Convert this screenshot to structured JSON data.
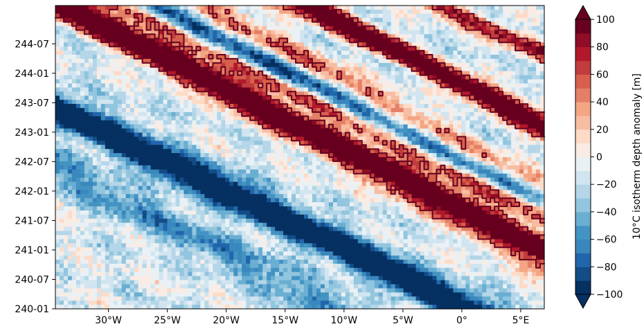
{
  "chart_data": {
    "type": "heatmap",
    "title": "",
    "xlabel": "",
    "ylabel": "",
    "x_ticks": [
      {
        "value": -30,
        "label": "30°W"
      },
      {
        "value": -25,
        "label": "25°W"
      },
      {
        "value": -20,
        "label": "20°W"
      },
      {
        "value": -15,
        "label": "15°W"
      },
      {
        "value": -10,
        "label": "10°W"
      },
      {
        "value": -5,
        "label": "5°W"
      },
      {
        "value": 0,
        "label": "0°"
      },
      {
        "value": 5,
        "label": "5°E"
      }
    ],
    "xlim": [
      -34.5,
      7
    ],
    "y_ticks": [
      "240-01",
      "240-07",
      "241-01",
      "241-07",
      "242-01",
      "242-07",
      "243-01",
      "243-07",
      "244-01",
      "244-07"
    ],
    "colorbar": {
      "label": "10°C isotherm depth anomaly [m]",
      "ticks": [
        -100,
        -80,
        -60,
        -40,
        -20,
        0,
        20,
        40,
        60,
        80,
        100
      ],
      "range": [
        -100,
        100
      ],
      "levels": [
        -100,
        -90,
        -80,
        -70,
        -60,
        -50,
        -40,
        -30,
        -20,
        -10,
        0,
        10,
        20,
        30,
        40,
        50,
        60,
        70,
        80,
        90,
        100
      ],
      "colors": [
        "#053061",
        "#134c87",
        "#2166ac",
        "#3a87bd",
        "#4393c3",
        "#6aaed2",
        "#92c5de",
        "#b4d6e8",
        "#d1e5f0",
        "#eaf1f5",
        "#f9ece4",
        "#fddbc7",
        "#f7bda3",
        "#f4a582",
        "#e48067",
        "#d6604d",
        "#c13c3c",
        "#b2182b",
        "#8f0d26",
        "#67001f"
      ],
      "extend_low_color": "#053061",
      "extend_high_color": "#67001f"
    },
    "contour_color": "#67001f",
    "bands": [
      {
        "lon0": -33,
        "t0": 6.8,
        "slope": -0.22,
        "amp": 52,
        "width": 0.5
      },
      {
        "lon0": -26,
        "t0": 8.7,
        "slope": -0.22,
        "amp": 58,
        "width": 0.55
      },
      {
        "lon0": -20,
        "t0": 9.9,
        "slope": -0.22,
        "amp": 62,
        "width": 0.5
      },
      {
        "lon0": -12,
        "t0": 6.9,
        "slope": -0.2,
        "amp": 85,
        "width": 0.4
      },
      {
        "lon0": -10,
        "t0": 5.3,
        "slope": -0.2,
        "amp": 72,
        "width": 0.35
      },
      {
        "lon0": -6,
        "t0": 8.9,
        "slope": -0.22,
        "amp": 110,
        "width": 0.35
      },
      {
        "lon0": 0,
        "t0": 3.6,
        "slope": -0.2,
        "amp": 95,
        "width": 0.35
      },
      {
        "lon0": 4,
        "t0": 9.2,
        "slope": -0.18,
        "amp": 95,
        "width": 0.3
      },
      {
        "lon0": 4,
        "t0": 7.0,
        "slope": -0.18,
        "amp": 90,
        "width": 0.3
      },
      {
        "lon0": -33,
        "t0": 4.5,
        "slope": -0.2,
        "amp": -45,
        "width": 0.7
      },
      {
        "lon0": -25,
        "t0": 5.2,
        "slope": -0.2,
        "amp": -55,
        "width": 0.6
      },
      {
        "lon0": -18,
        "t0": 3.4,
        "slope": -0.2,
        "amp": -70,
        "width": 0.5
      },
      {
        "lon0": -10,
        "t0": 2.0,
        "slope": -0.2,
        "amp": -85,
        "width": 0.45
      },
      {
        "lon0": -5,
        "t0": 5.9,
        "slope": -0.2,
        "amp": -60,
        "width": 0.4
      },
      {
        "lon0": 0,
        "t0": 5.2,
        "slope": -0.2,
        "amp": -45,
        "width": 0.35
      }
    ]
  }
}
